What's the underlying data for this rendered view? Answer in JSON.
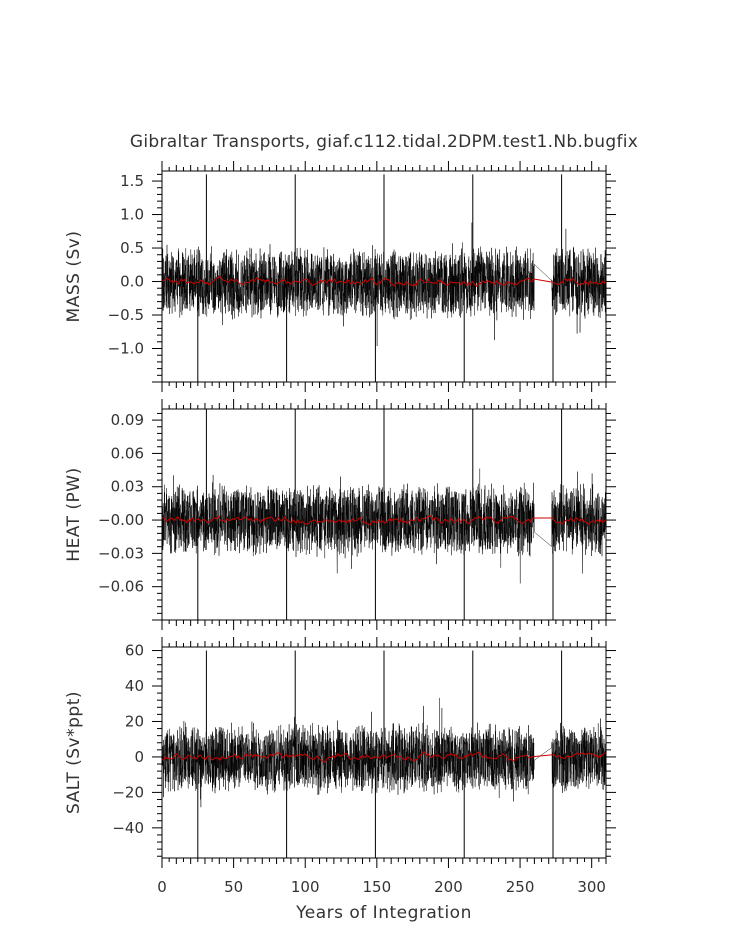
{
  "title": "Gibraltar Transports, giaf.c112.tidal.2DPM.test1.Nb.bugfix",
  "xlabel": "Years of Integration",
  "colors": {
    "raw": "#000000",
    "smooth": "#cc0000",
    "axes": "#000000",
    "text": "#333333"
  },
  "chart_data": [
    {
      "type": "line",
      "id": "mass",
      "ylabel": "MASS (Sv)",
      "xlim": [
        0,
        310
      ],
      "ylim": [
        -1.5,
        1.65
      ],
      "xticks": [
        0,
        50,
        100,
        150,
        200,
        250,
        300
      ],
      "yticks": [
        -1.0,
        -0.5,
        0.0,
        0.5,
        1.0,
        1.5
      ],
      "ytick_labels": [
        "−1.0",
        "−0.5",
        "0.0",
        "0.5",
        "1.0",
        "1.5"
      ],
      "gap": [
        260,
        272
      ],
      "raw_envelope": [
        -0.6,
        0.55
      ],
      "smoothed_envelope": [
        -0.1,
        0.1
      ],
      "spikes_up": [
        [
          31,
          1.6
        ],
        [
          93,
          1.6
        ],
        [
          155,
          1.6
        ],
        [
          217,
          1.6
        ],
        [
          279,
          1.6
        ]
      ],
      "spikes_down": [
        [
          25,
          -1.5
        ],
        [
          87,
          -1.5
        ],
        [
          149,
          -1.5
        ],
        [
          211,
          -1.5
        ],
        [
          273,
          -1.5
        ]
      ],
      "series": [
        {
          "name": "",
          "role": "raw"
        },
        {
          "name": "",
          "role": "smoothed"
        }
      ]
    },
    {
      "type": "line",
      "id": "heat",
      "ylabel": "HEAT (PW)",
      "xlim": [
        0,
        310
      ],
      "ylim": [
        -0.09,
        0.1
      ],
      "xticks": [
        0,
        50,
        100,
        150,
        200,
        250,
        300
      ],
      "yticks": [
        -0.06,
        -0.03,
        0.0,
        0.03,
        0.06,
        0.09
      ],
      "ytick_labels": [
        "−0.06",
        "−0.03",
        "−0.00",
        "0.03",
        "0.06",
        "0.09"
      ],
      "gap": [
        260,
        272
      ],
      "raw_envelope": [
        -0.035,
        0.035
      ],
      "smoothed_envelope": [
        -0.006,
        0.006
      ],
      "spikes_up": [
        [
          31,
          0.1
        ],
        [
          93,
          0.1
        ],
        [
          155,
          0.1
        ],
        [
          217,
          0.1
        ],
        [
          279,
          0.1
        ]
      ],
      "spikes_down": [
        [
          25,
          -0.09
        ],
        [
          87,
          -0.09
        ],
        [
          149,
          -0.09
        ],
        [
          211,
          -0.09
        ],
        [
          273,
          -0.09
        ]
      ],
      "series": [
        {
          "name": "",
          "role": "raw"
        },
        {
          "name": "",
          "role": "smoothed"
        }
      ]
    },
    {
      "type": "line",
      "id": "salt",
      "ylabel": "SALT (Sv*ppt)",
      "xlim": [
        0,
        310
      ],
      "ylim": [
        -57,
        62
      ],
      "xticks": [
        0,
        50,
        100,
        150,
        200,
        250,
        300
      ],
      "yticks": [
        -40,
        -20,
        0,
        20,
        40,
        60
      ],
      "ytick_labels": [
        "−40",
        "−20",
        "0",
        "20",
        "40",
        "60"
      ],
      "gap": [
        260,
        272
      ],
      "raw_envelope": [
        -22,
        20
      ],
      "smoothed_envelope": [
        -3.5,
        3.5
      ],
      "spikes_up": [
        [
          31,
          60
        ],
        [
          93,
          60
        ],
        [
          155,
          60
        ],
        [
          217,
          60
        ],
        [
          279,
          60
        ]
      ],
      "spikes_down": [
        [
          25,
          -57
        ],
        [
          87,
          -57
        ],
        [
          149,
          -57
        ],
        [
          211,
          -57
        ],
        [
          273,
          -57
        ]
      ],
      "series": [
        {
          "name": "",
          "role": "raw"
        },
        {
          "name": "",
          "role": "smoothed"
        }
      ]
    }
  ]
}
